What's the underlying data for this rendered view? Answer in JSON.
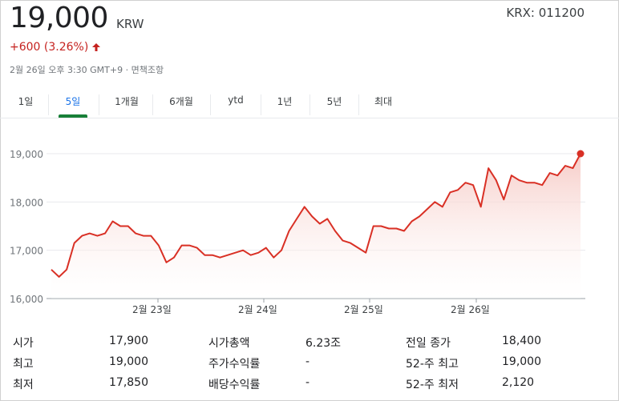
{
  "header": {
    "price": "19,000",
    "currency": "KRW",
    "ticker": "KRX: 011200",
    "change": "+600 (3.26%)",
    "change_icon": "arrow-up-icon",
    "timestamp": "2월 26일 오후 3:30 GMT+9 · ",
    "disclaimer": "면책조항"
  },
  "tabs": [
    {
      "label": "1일",
      "active": false
    },
    {
      "label": "5일",
      "active": true
    },
    {
      "label": "1개월",
      "active": false
    },
    {
      "label": "6개월",
      "active": false
    },
    {
      "label": "ytd",
      "active": false
    },
    {
      "label": "1년",
      "active": false
    },
    {
      "label": "5년",
      "active": false
    },
    {
      "label": "최대",
      "active": false
    }
  ],
  "colors": {
    "line": "#d93025",
    "fill": "#f8d7d4",
    "active_tab_indicator": "#188038",
    "negative_change": "#c5221f"
  },
  "chart_data": {
    "type": "area",
    "y_ticks": [
      "19,000",
      "18,000",
      "17,000",
      "16,000"
    ],
    "ylim": [
      16000,
      19300
    ],
    "x_tick_labels": [
      "2월 23일",
      "2월 24일",
      "2월 25일",
      "2월 26일"
    ],
    "grid": true,
    "series": [
      {
        "values": [
          16600,
          16450,
          16600,
          17150,
          17300,
          17350,
          17300,
          17350,
          17600,
          17500,
          17500,
          17350,
          17300,
          17300,
          17100,
          16750,
          16850,
          17100,
          17100,
          17050,
          16900,
          16900,
          16850,
          16900,
          16950,
          17000,
          16900,
          16950,
          17050,
          16850,
          17000,
          17400,
          17650,
          17900,
          17700,
          17550,
          17650,
          17400,
          17200,
          17150,
          17050,
          16950,
          17500,
          17500,
          17450,
          17450,
          17400,
          17600,
          17700,
          17850,
          18000,
          17900,
          18200,
          18250,
          18400,
          18350,
          17900,
          18700,
          18450,
          18050,
          18550,
          18450,
          18400,
          18400,
          18350,
          18600,
          18550,
          18750,
          18700,
          19000
        ]
      }
    ]
  },
  "stats": [
    {
      "l1": "시가",
      "v1": "17,900",
      "l2": "시가총액",
      "v2": "6.23조",
      "l3": "전일 종가",
      "v3": "18,400"
    },
    {
      "l1": "최고",
      "v1": "19,000",
      "l2": "주가수익률",
      "v2": "-",
      "l3": "52-주 최고",
      "v3": "19,000"
    },
    {
      "l1": "최저",
      "v1": "17,850",
      "l2": "배당수익률",
      "v2": "-",
      "l3": "52-주 최저",
      "v3": "2,120"
    }
  ]
}
